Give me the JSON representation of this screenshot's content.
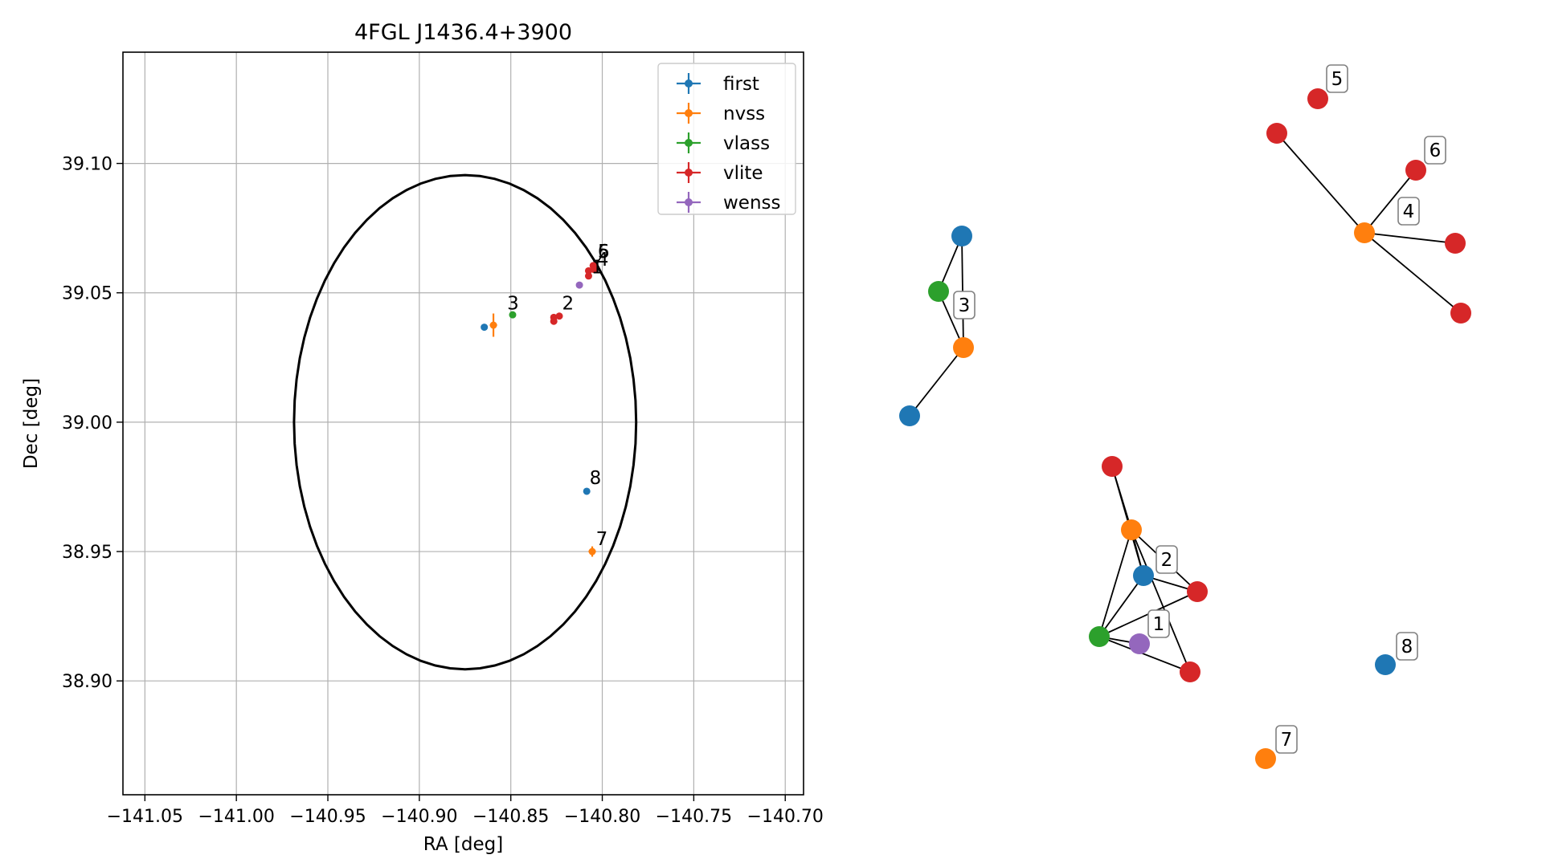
{
  "chart_data": [
    {
      "type": "scatter",
      "title": "4FGL J1436.4+3900",
      "xlabel": "RA [deg]",
      "ylabel": "Dec [deg]",
      "xlim": [
        -141.062,
        -140.69
      ],
      "ylim": [
        38.856,
        39.143
      ],
      "xticks": [
        -141.05,
        -141.0,
        -140.95,
        -140.9,
        -140.85,
        -140.8,
        -140.75,
        -140.7
      ],
      "xtick_labels": [
        "−141.05",
        "−141.00",
        "−140.95",
        "−140.90",
        "−140.85",
        "−140.80",
        "−140.75",
        "−140.70"
      ],
      "yticks": [
        38.9,
        38.95,
        39.0,
        39.05,
        39.1
      ],
      "ytick_labels": [
        "38.90",
        "38.95",
        "39.00",
        "39.05",
        "39.10"
      ],
      "grid": true,
      "legend_position": "top-right",
      "ellipse": {
        "center_ra": -140.875,
        "center_dec": 39.0,
        "semi_axis_ra": 0.0935,
        "semi_axis_dec": 0.0955,
        "color": "#000000"
      },
      "series": [
        {
          "name": "first",
          "color": "#1f77b4",
          "points": [
            {
              "ra": -140.8645,
              "dec": 39.0367,
              "ra_err": 0.0,
              "dec_err": 0.0
            },
            {
              "ra": -140.8085,
              "dec": 38.9733,
              "ra_err": 0.0,
              "dec_err": 0.0
            }
          ]
        },
        {
          "name": "nvss",
          "color": "#ff7f0e",
          "points": [
            {
              "ra": -140.8595,
              "dec": 39.0375,
              "ra_err": 0.002,
              "dec_err": 0.0045
            },
            {
              "ra": -140.8055,
              "dec": 38.95,
              "ra_err": 0.002,
              "dec_err": 0.002
            }
          ]
        },
        {
          "name": "vlass",
          "color": "#2ca02c",
          "points": [
            {
              "ra": -140.849,
              "dec": 39.0415,
              "ra_err": 0.0,
              "dec_err": 0.0
            }
          ]
        },
        {
          "name": "vlite",
          "color": "#d62728",
          "points": [
            {
              "ra": -140.8265,
              "dec": 39.0405,
              "ra_err": 0.0,
              "dec_err": 0.0
            },
            {
              "ra": -140.8265,
              "dec": 39.039,
              "ra_err": 0.0,
              "dec_err": 0.0
            },
            {
              "ra": -140.8235,
              "dec": 39.041,
              "ra_err": 0.0,
              "dec_err": 0.0
            },
            {
              "ra": -140.8075,
              "dec": 39.0585,
              "ra_err": 0.0,
              "dec_err": 0.0
            },
            {
              "ra": -140.8075,
              "dec": 39.0565,
              "ra_err": 0.0,
              "dec_err": 0.0
            },
            {
              "ra": -140.805,
              "dec": 39.0605,
              "ra_err": 0.0,
              "dec_err": 0.0
            },
            {
              "ra": -140.8045,
              "dec": 39.059,
              "ra_err": 0.0,
              "dec_err": 0.0
            }
          ]
        },
        {
          "name": "wenss",
          "color": "#9467bd",
          "points": [
            {
              "ra": -140.8125,
              "dec": 39.053,
              "ra_err": 0.0,
              "dec_err": 0.0
            }
          ]
        }
      ],
      "point_labels": [
        {
          "text": "1",
          "ra": -140.806,
          "dec": 39.0575
        },
        {
          "text": "2",
          "ra": -140.822,
          "dec": 39.0435
        },
        {
          "text": "3",
          "ra": -140.852,
          "dec": 39.0435
        },
        {
          "text": "4",
          "ra": -140.803,
          "dec": 39.0605
        },
        {
          "text": "5",
          "ra": -140.8025,
          "dec": 39.0635
        },
        {
          "text": "6",
          "ra": -140.8025,
          "dec": 39.0635
        },
        {
          "text": "7",
          "ra": -140.8035,
          "dec": 38.9525
        },
        {
          "text": "8",
          "ra": -140.807,
          "dec": 38.976
        }
      ]
    },
    {
      "type": "network",
      "node_colors": {
        "first": "#1f77b4",
        "nvss": "#ff7f0e",
        "vlass": "#2ca02c",
        "vlite": "#d62728",
        "wenss": "#9467bd"
      },
      "label_box": {
        "stroke": "#808080",
        "fill": "#ffffff"
      },
      "edge_color": "#000000",
      "nodes": [
        {
          "id": "a1",
          "catalog": "first"
        },
        {
          "id": "a2",
          "catalog": "vlass"
        },
        {
          "id": "a3",
          "catalog": "nvss"
        },
        {
          "id": "a4",
          "catalog": "first"
        },
        {
          "id": "b1",
          "catalog": "vlite"
        },
        {
          "id": "b2",
          "catalog": "vlite"
        },
        {
          "id": "b3",
          "catalog": "nvss"
        },
        {
          "id": "b4",
          "catalog": "vlite"
        },
        {
          "id": "b5",
          "catalog": "vlite"
        },
        {
          "id": "c1",
          "catalog": "vlite"
        },
        {
          "id": "c2",
          "catalog": "nvss"
        },
        {
          "id": "c3",
          "catalog": "first"
        },
        {
          "id": "c4",
          "catalog": "vlite"
        },
        {
          "id": "c5",
          "catalog": "vlass"
        },
        {
          "id": "c6",
          "catalog": "wenss"
        },
        {
          "id": "c7",
          "catalog": "vlite"
        },
        {
          "id": "d1",
          "catalog": "first"
        },
        {
          "id": "e1",
          "catalog": "nvss"
        }
      ],
      "edges": [
        [
          "a1",
          "a2"
        ],
        [
          "a1",
          "a3"
        ],
        [
          "a2",
          "a3"
        ],
        [
          "a3",
          "a4"
        ],
        [
          "b1",
          "b3"
        ],
        [
          "b3",
          "b4"
        ],
        [
          "b3",
          "b5"
        ],
        [
          "c1",
          "c2"
        ],
        [
          "c1",
          "c3"
        ],
        [
          "c2",
          "c3"
        ],
        [
          "c2",
          "c4"
        ],
        [
          "c2",
          "c5"
        ],
        [
          "c2",
          "c7"
        ],
        [
          "c3",
          "c4"
        ],
        [
          "c3",
          "c5"
        ],
        [
          "c5",
          "c4"
        ],
        [
          "c5",
          "c6"
        ],
        [
          "c5",
          "c7"
        ]
      ],
      "labels": [
        {
          "text": "3",
          "node": "a2"
        },
        {
          "text": "5",
          "node": "b2"
        },
        {
          "text": "6",
          "node": "b4"
        },
        {
          "text": "4",
          "node": "b3"
        },
        {
          "text": "2",
          "node": "c3"
        },
        {
          "text": "1",
          "node": "c6"
        },
        {
          "text": "8",
          "node": "d1"
        },
        {
          "text": "7",
          "node": "e1"
        }
      ]
    }
  ]
}
